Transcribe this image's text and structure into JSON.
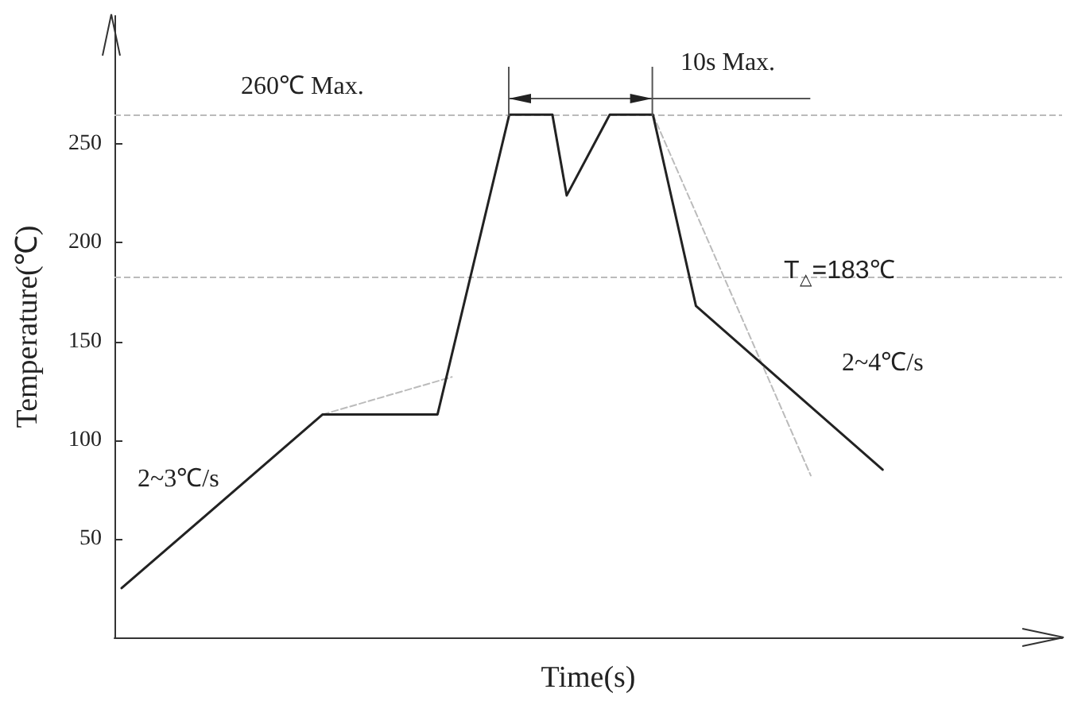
{
  "chart_data": {
    "type": "line",
    "xlabel": "Time(s)",
    "ylabel": "Temperature(℃)",
    "categories": [
      null,
      null,
      null,
      null,
      null,
      null,
      null,
      null,
      null,
      null,
      null,
      null,
      null,
      null,
      null,
      null,
      null,
      null,
      null,
      null,
      null,
      null,
      null,
      null,
      null,
      null,
      null,
      null,
      null,
      null,
      null,
      null,
      null,
      null,
      null,
      null,
      null,
      null,
      null,
      null,
      null,
      null,
      null,
      null,
      null,
      null,
      null,
      null,
      null,
      null,
      null,
      null,
      null,
      null,
      null,
      null,
      null,
      null,
      null,
      null,
      null,
      null,
      null,
      null,
      null,
      null
    ],
    "ylim": [
      0,
      315
    ],
    "yticks": [
      50,
      100,
      150,
      200,
      250
    ],
    "tick_labels": "y",
    "grid": false,
    "marker": "none",
    "series": [
      {
        "color": "#222222",
        "line_style": "solid",
        "values": [
          25,
          null,
          null,
          null,
          null,
          null,
          null,
          null,
          null,
          null,
          null,
          null,
          null,
          null,
          113,
          null,
          null,
          null,
          null,
          null,
          null,
          null,
          113,
          null,
          null,
          null,
          null,
          265,
          null,
          null,
          265,
          224,
          null,
          null,
          265,
          null,
          null,
          265,
          null,
          null,
          168,
          null,
          null,
          null,
          null,
          null,
          null,
          null,
          null,
          null,
          null,
          null,
          null,
          85,
          null,
          null,
          null,
          null,
          null,
          null,
          null,
          null,
          null,
          null,
          null,
          null
        ]
      },
      {
        "color": "#bbbbbb",
        "line_style": "dashed",
        "values": [
          null,
          null,
          null,
          null,
          null,
          null,
          null,
          null,
          null,
          null,
          null,
          null,
          null,
          null,
          113,
          null,
          null,
          null,
          null,
          null,
          null,
          null,
          null,
          132,
          null,
          null,
          null,
          null,
          null,
          null,
          null,
          null,
          null,
          null,
          null,
          null,
          null,
          null,
          null,
          null,
          null,
          null,
          null,
          null,
          null,
          null,
          null,
          null,
          null,
          null,
          null,
          null,
          null,
          null,
          null,
          null,
          null,
          null,
          null,
          null,
          null,
          null,
          null,
          null,
          null,
          null
        ]
      },
      {
        "color": "#bbbbbb",
        "line_style": "dashed",
        "values": [
          null,
          null,
          null,
          null,
          null,
          null,
          null,
          null,
          null,
          null,
          null,
          null,
          null,
          null,
          null,
          null,
          null,
          null,
          null,
          null,
          null,
          null,
          null,
          null,
          null,
          null,
          null,
          null,
          null,
          null,
          null,
          null,
          null,
          null,
          null,
          null,
          null,
          265,
          null,
          null,
          null,
          null,
          null,
          null,
          null,
          null,
          null,
          null,
          82,
          null,
          null,
          null,
          null,
          null,
          null,
          null,
          null,
          null,
          null,
          null,
          null,
          null,
          null,
          null,
          null,
          null
        ]
      }
    ],
    "ref_lines": [
      {
        "axis": "y",
        "value": 265,
        "label": "260℃ Max.",
        "color": "#bbbbbb",
        "line_style": "dashed"
      },
      {
        "axis": "y",
        "value": 183,
        "label": "T$_{△}$=183℃",
        "color": "#bbbbbb",
        "line_style": "dashed"
      }
    ],
    "annotations": [
      "2~3℃/s",
      "2~4℃/s",
      "10s Max."
    ]
  }
}
